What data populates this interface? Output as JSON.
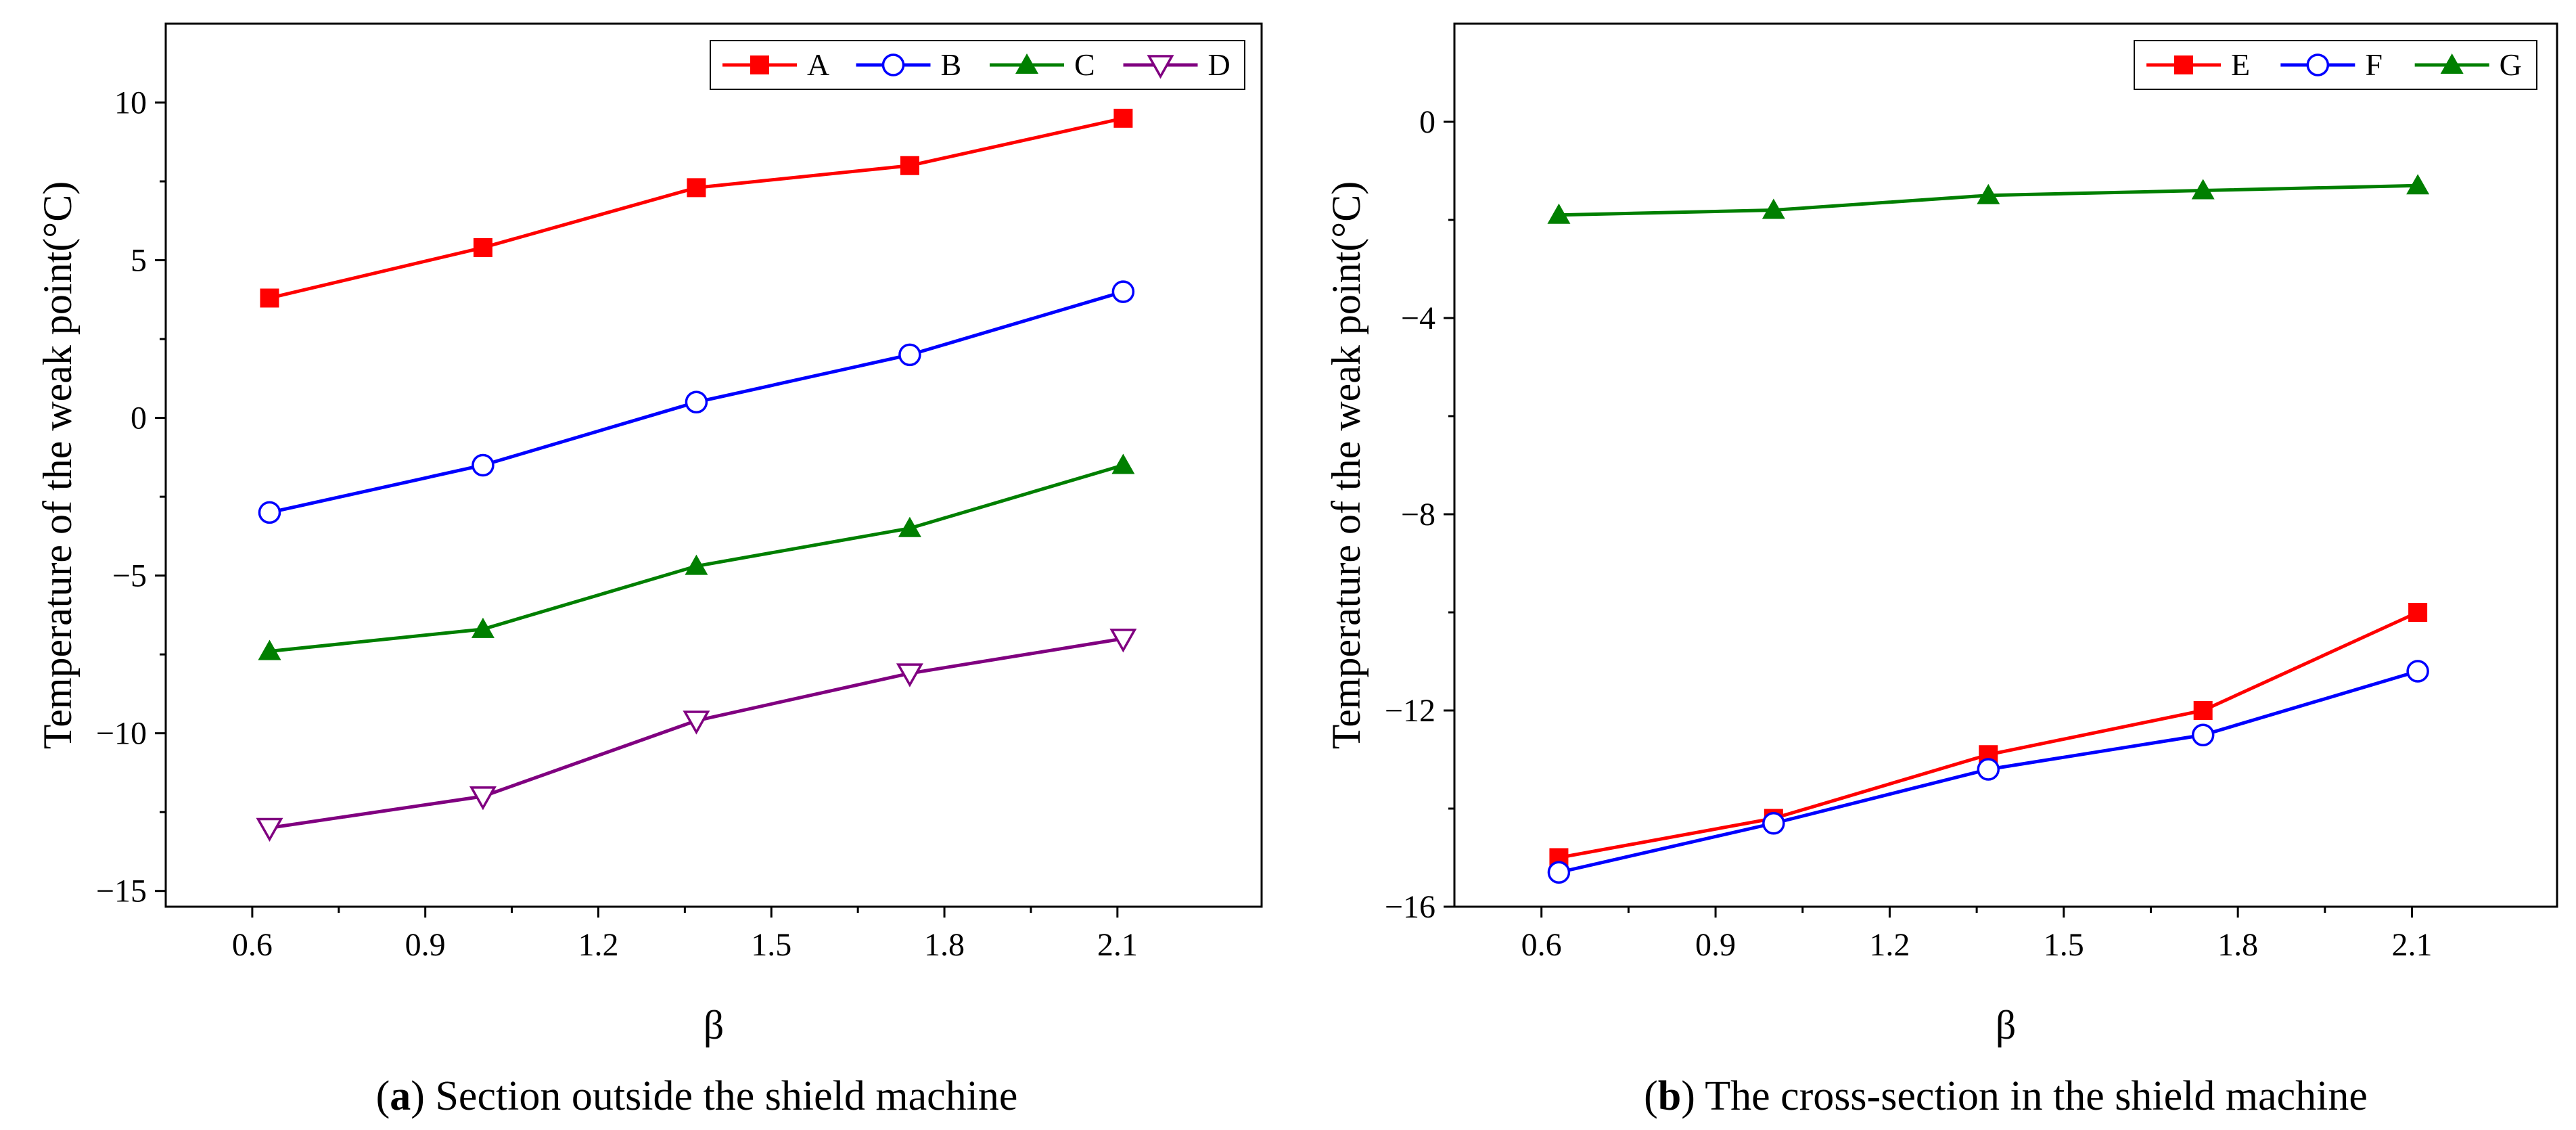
{
  "chart_data": [
    {
      "type": "line",
      "panel_label": "a",
      "caption": "Section outside the shield machine",
      "xlabel": "β",
      "ylabel": "Temperature of the weak point(°C)",
      "x": [
        0.63,
        1.0,
        1.37,
        1.74,
        2.11
      ],
      "xlim": [
        0.45,
        2.35
      ],
      "ylim": [
        -15.5,
        12.5
      ],
      "xticks": [
        0.6,
        0.9,
        1.2,
        1.5,
        1.8,
        2.1
      ],
      "xtick_labels": [
        "0.6",
        "0.9",
        "1.2",
        "1.5",
        "1.8",
        "2.1"
      ],
      "yticks": [
        10,
        5,
        0,
        -5,
        -10,
        -15
      ],
      "ytick_labels": [
        "10",
        "5",
        "0",
        "−5",
        "−10",
        "−15"
      ],
      "legend_position": "top-right",
      "grid": false,
      "series": [
        {
          "name": "A",
          "color": "#ff0000",
          "marker": "square",
          "values": [
            3.8,
            5.4,
            7.3,
            8.0,
            9.5
          ]
        },
        {
          "name": "B",
          "color": "#0000ff",
          "marker": "circle-open",
          "values": [
            -3.0,
            -1.5,
            0.5,
            2.0,
            4.0
          ]
        },
        {
          "name": "C",
          "color": "#007f00",
          "marker": "triangle-up",
          "values": [
            -7.4,
            -6.7,
            -4.7,
            -3.5,
            -1.5
          ]
        },
        {
          "name": "D",
          "color": "#800080",
          "marker": "triangle-down-open",
          "values": [
            -13.0,
            -12.0,
            -9.6,
            -8.1,
            -7.0
          ]
        }
      ]
    },
    {
      "type": "line",
      "panel_label": "b",
      "caption": "The cross-section in the shield machine",
      "xlabel": "β",
      "ylabel": "Temperature of the weak point(°C)",
      "x": [
        0.63,
        1.0,
        1.37,
        1.74,
        2.11
      ],
      "xlim": [
        0.45,
        2.35
      ],
      "ylim": [
        -16,
        2
      ],
      "xticks": [
        0.6,
        0.9,
        1.2,
        1.5,
        1.8,
        2.1
      ],
      "xtick_labels": [
        "0.6",
        "0.9",
        "1.2",
        "1.5",
        "1.8",
        "2.1"
      ],
      "yticks": [
        0,
        -4,
        -8,
        -12,
        -16
      ],
      "ytick_labels": [
        "0",
        "−4",
        "−8",
        "−12",
        "−16"
      ],
      "legend_position": "top-right",
      "grid": false,
      "series": [
        {
          "name": "E",
          "color": "#ff0000",
          "marker": "square",
          "values": [
            -15.0,
            -14.2,
            -12.9,
            -12.0,
            -10.0
          ]
        },
        {
          "name": "F",
          "color": "#0000ff",
          "marker": "circle-open",
          "values": [
            -15.3,
            -14.3,
            -13.2,
            -12.5,
            -11.2
          ]
        },
        {
          "name": "G",
          "color": "#007f00",
          "marker": "triangle-up",
          "values": [
            -1.9,
            -1.8,
            -1.5,
            -1.4,
            -1.3
          ]
        }
      ]
    }
  ]
}
